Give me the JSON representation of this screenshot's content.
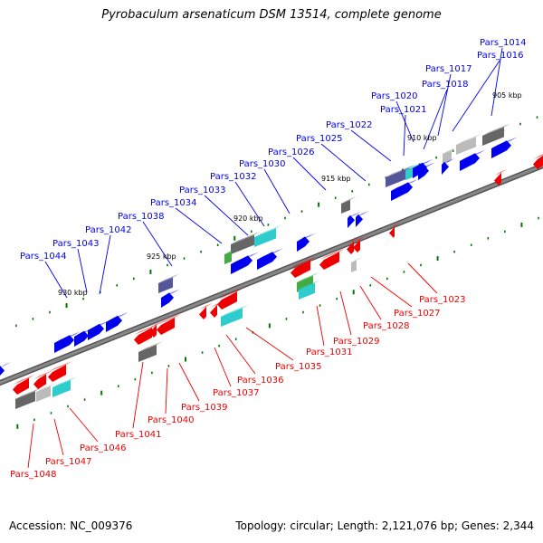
{
  "title": "Pyrobaculum arsenaticum DSM 13514, complete genome",
  "footer": {
    "accession": "Accession: NC_009376",
    "summary": "Topology: circular; Length: 2,121,076 bp; Genes: 2,344"
  },
  "colors": {
    "forward": "#0000ee",
    "reverse": "#ee0000",
    "backbone": "#888888",
    "tick": "#007700",
    "other": [
      "#666666",
      "#bbbbbb",
      "#2ecccc",
      "#44aa44",
      "#555599"
    ]
  },
  "scale_labels": [
    "905 kbp",
    "910 kbp",
    "915 kbp",
    "920 kbp",
    "925 kbp",
    "930 kbp"
  ],
  "forward_genes": [
    "Pars_1014",
    "Pars_1016",
    "Pars_1017",
    "Pars_1018",
    "Pars_1020",
    "Pars_1021",
    "Pars_1022",
    "Pars_1025",
    "Pars_1026",
    "Pars_1030",
    "Pars_1032",
    "Pars_1033",
    "Pars_1034",
    "Pars_1038",
    "Pars_1042",
    "Pars_1043",
    "Pars_1044"
  ],
  "reverse_genes": [
    "Pars_1023",
    "Pars_1027",
    "Pars_1028",
    "Pars_1029",
    "Pars_1031",
    "Pars_1035",
    "Pars_1036",
    "Pars_1037",
    "Pars_1039",
    "Pars_1040",
    "Pars_1041",
    "Pars_1046",
    "Pars_1047",
    "Pars_1048"
  ]
}
